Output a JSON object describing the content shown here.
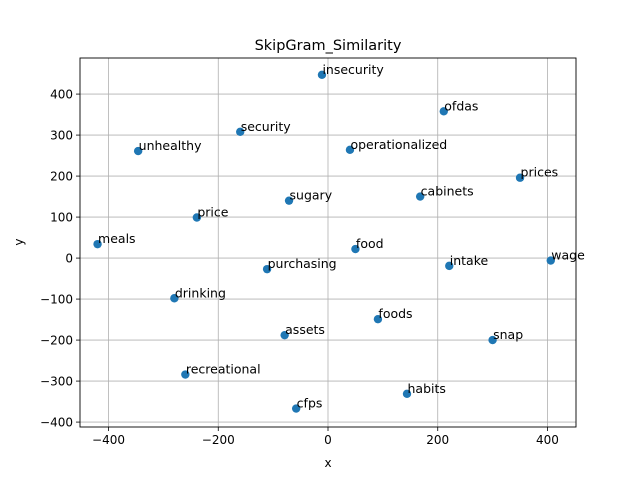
{
  "chart_data": {
    "type": "scatter",
    "title": "SkipGram_Similarity",
    "xlabel": "x",
    "ylabel": "y",
    "xlim": [
      -452,
      452
    ],
    "ylim": [
      -412,
      488
    ],
    "xticks": [
      -400,
      -200,
      0,
      200,
      400
    ],
    "yticks": [
      -400,
      -300,
      -200,
      -100,
      0,
      100,
      200,
      300,
      400
    ],
    "xtick_labels": [
      "−400",
      "−200",
      "0",
      "200",
      "400"
    ],
    "ytick_labels": [
      "−400",
      "−300",
      "−200",
      "−100",
      "0",
      "100",
      "200",
      "300",
      "400"
    ],
    "grid": true,
    "marker_color": "#1f77b4",
    "points": [
      {
        "label": "insecurity",
        "x": -11,
        "y": 447
      },
      {
        "label": "ofdas",
        "x": 211,
        "y": 358
      },
      {
        "label": "security",
        "x": -160,
        "y": 308
      },
      {
        "label": "operationalized",
        "x": 40,
        "y": 264
      },
      {
        "label": "unhealthy",
        "x": -346,
        "y": 261
      },
      {
        "label": "prices",
        "x": 350,
        "y": 196
      },
      {
        "label": "cabinets",
        "x": 168,
        "y": 150
      },
      {
        "label": "sugary",
        "x": -71,
        "y": 140
      },
      {
        "label": "price",
        "x": -239,
        "y": 99
      },
      {
        "label": "meals",
        "x": -420,
        "y": 34
      },
      {
        "label": "food",
        "x": 50,
        "y": 22
      },
      {
        "label": "wage",
        "x": 406,
        "y": -6
      },
      {
        "label": "intake",
        "x": 221,
        "y": -19
      },
      {
        "label": "purchasing",
        "x": -111,
        "y": -27
      },
      {
        "label": "drinking",
        "x": -280,
        "y": -98
      },
      {
        "label": "foods",
        "x": 91,
        "y": -149
      },
      {
        "label": "assets",
        "x": -79,
        "y": -188
      },
      {
        "label": "snap",
        "x": 300,
        "y": -200
      },
      {
        "label": "recreational",
        "x": -260,
        "y": -284
      },
      {
        "label": "habits",
        "x": 144,
        "y": -331
      },
      {
        "label": "cfps",
        "x": -58,
        "y": -367
      }
    ]
  }
}
